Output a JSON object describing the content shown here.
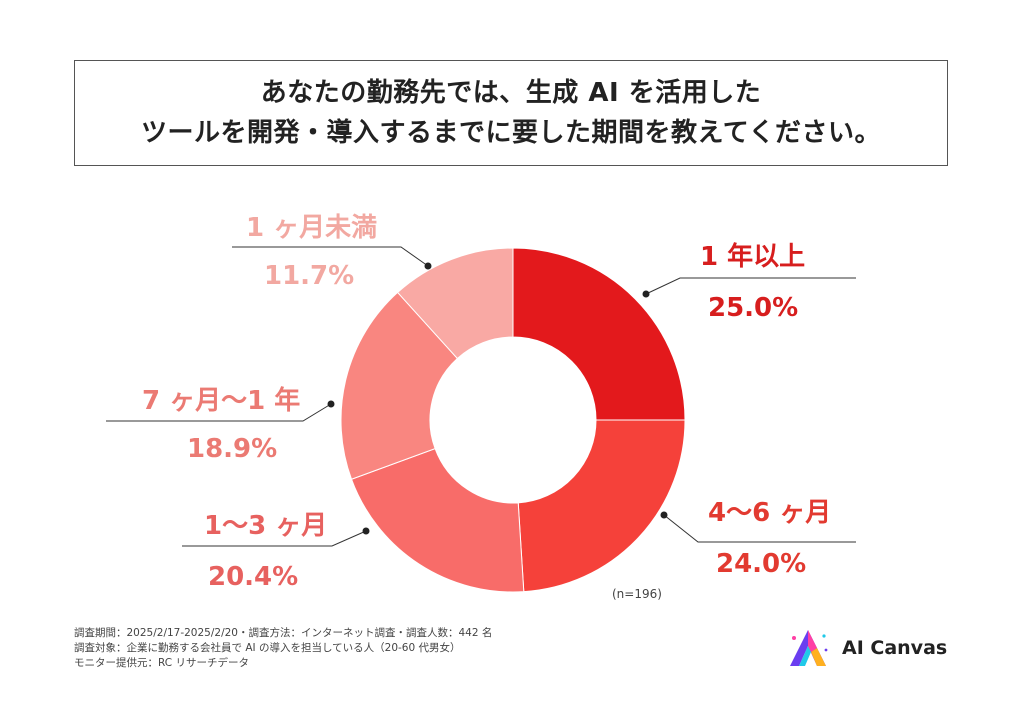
{
  "header": {
    "title_line1": "あなたの勤務先では、生成 AI を活用した",
    "title_line2": "ツールを開発・導入するまでに要した期間を教えてください。"
  },
  "chart_data": {
    "type": "pie",
    "donut": true,
    "title": "あなたの勤務先では、生成 AI を活用したツールを開発・導入するまでに要した期間を教えてください。",
    "categories": [
      "1 年以上",
      "4〜6 ヶ月",
      "1〜3 ヶ月",
      "7 ヶ月〜1 年",
      "1 ヶ月未満"
    ],
    "values": [
      25.0,
      24.0,
      20.4,
      18.9,
      11.7
    ],
    "value_labels": [
      "25.0%",
      "24.0%",
      "20.4%",
      "18.9%",
      "11.7%"
    ],
    "colors": [
      "#E3191C",
      "#F5413A",
      "#F86C69",
      "#F98680",
      "#F9A9A4"
    ],
    "label_colors": [
      "#D71E1E",
      "#E23A30",
      "#E7615F",
      "#EB7A73",
      "#F2A8A1"
    ],
    "n_label": "(n=196)"
  },
  "footnotes": {
    "line1": "調査期間：2025/2/17-2025/2/20・調査方法：インターネット調査・調査人数：442 名",
    "line2": "調査対象：企業に勤務する会社員で AI の導入を担当している人（20-60 代男女）",
    "line3": "モニター提供元：RC リサーチデータ"
  },
  "brand": {
    "name": "AI Canvas"
  }
}
